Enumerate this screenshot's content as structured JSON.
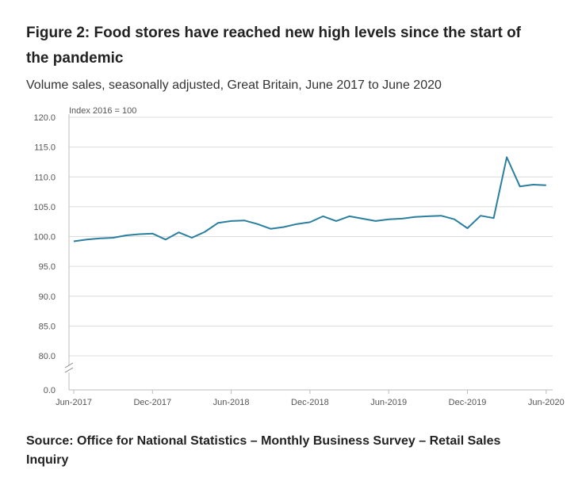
{
  "figure": {
    "title": "Figure 2: Food stores have reached new high levels since the start of the pandemic",
    "subtitle": "Volume sales, seasonally adjusted, Great Britain, June 2017 to June 2020",
    "source": "Source: Office for National Statistics – Monthly Business Survey – Retail Sales Inquiry"
  },
  "chart_data": {
    "type": "line",
    "title": "Figure 2: Food stores have reached new high levels since the start of the pandemic",
    "subtitle": "Volume sales, seasonally adjusted, Great Britain, June 2017 to June 2020",
    "ylabel": "Index 2016 = 100",
    "xlabel": "",
    "ylim": [
      80,
      120
    ],
    "axis_break": true,
    "yticks": [
      "0.0",
      "80.0",
      "85.0",
      "90.0",
      "95.0",
      "100.0",
      "105.0",
      "110.0",
      "115.0",
      "120.0"
    ],
    "xtick_labels": [
      "Jun-2017",
      "Dec-2017",
      "Jun-2018",
      "Dec-2018",
      "Jun-2019",
      "Dec-2019",
      "Jun-2020"
    ],
    "grid": "horizontal",
    "line_color": "#2a7f9e",
    "categories": [
      "Jun-2017",
      "Jul-2017",
      "Aug-2017",
      "Sep-2017",
      "Oct-2017",
      "Nov-2017",
      "Dec-2017",
      "Jan-2018",
      "Feb-2018",
      "Mar-2018",
      "Apr-2018",
      "May-2018",
      "Jun-2018",
      "Jul-2018",
      "Aug-2018",
      "Sep-2018",
      "Oct-2018",
      "Nov-2018",
      "Dec-2018",
      "Jan-2019",
      "Feb-2019",
      "Mar-2019",
      "Apr-2019",
      "May-2019",
      "Jun-2019",
      "Jul-2019",
      "Aug-2019",
      "Sep-2019",
      "Oct-2019",
      "Nov-2019",
      "Dec-2019",
      "Jan-2020",
      "Feb-2020",
      "Mar-2020",
      "Apr-2020",
      "May-2020",
      "Jun-2020"
    ],
    "series": [
      {
        "values": [
          99.2,
          99.5,
          99.7,
          99.8,
          100.2,
          100.4,
          100.5,
          99.5,
          100.7,
          99.8,
          100.8,
          102.3,
          102.6,
          102.7,
          102.1,
          101.3,
          101.6,
          102.1,
          102.4,
          103.4,
          102.6,
          103.4,
          103.0,
          102.6,
          102.9,
          103.0,
          103.3,
          103.4,
          103.5,
          102.9,
          101.4,
          103.5,
          103.1,
          113.3,
          108.4,
          108.7,
          108.6
        ]
      }
    ]
  }
}
